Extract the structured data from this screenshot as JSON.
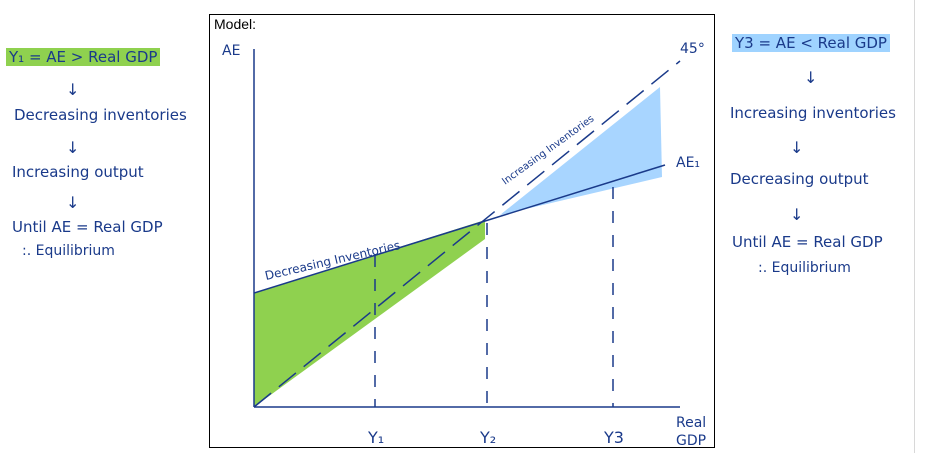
{
  "model_label": "Model:",
  "left_notes": {
    "line1": "Y₁ = AE > Real GDP",
    "line2": "Decreasing inventories",
    "line3": "Increasing output",
    "line4": "Until AE = Real GDP",
    "line5": ":. Equilibrium"
  },
  "right_notes": {
    "line1": "Y3 = AE < Real GDP",
    "line2": "Increasing inventories",
    "line3": "Decreasing output",
    "line4": "Until AE = Real GDP",
    "line5": ":. Equilibrium"
  },
  "arrows": {
    "down": "↓"
  },
  "diagram": {
    "y_axis_label": "AE",
    "x_axis_label_1": "Real",
    "x_axis_label_2": "GDP",
    "line_45_label": "45°",
    "ae_label": "AE₁",
    "region_left_label": "Decreasing Inventories",
    "region_right_label": "Increasing Inventories",
    "ticks": [
      "Y₁",
      "Y₂",
      "Y3"
    ]
  },
  "colors": {
    "ink": "#1a3a8a",
    "green": "#8fd14f",
    "blue": "#9fd3ff"
  }
}
